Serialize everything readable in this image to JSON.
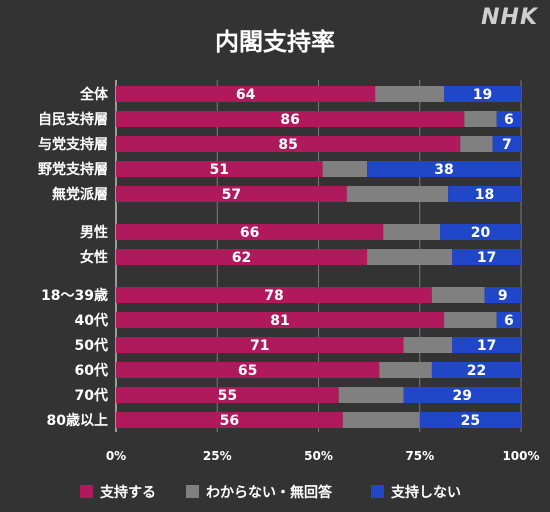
{
  "brand": "NHK",
  "chart_data": {
    "type": "bar",
    "orientation": "horizontal",
    "stacked": true,
    "title": "内閣支持率",
    "categories": [
      "全体",
      "自民支持層",
      "与党支持層",
      "野党支持層",
      "無党派層",
      "男性",
      "女性",
      "18〜39歳",
      "40代",
      "50代",
      "60代",
      "70代",
      "80歳以上"
    ],
    "groups": [
      [
        0,
        1,
        2,
        3,
        4
      ],
      [
        5,
        6
      ],
      [
        7,
        8,
        9,
        10,
        11,
        12
      ]
    ],
    "series": [
      {
        "name": "支持する",
        "color": "#b0195b",
        "values": [
          64,
          86,
          85,
          51,
          57,
          66,
          62,
          78,
          81,
          71,
          65,
          55,
          56
        ]
      },
      {
        "name": "わからない・無回答",
        "color": "#808080",
        "values": [
          17,
          8,
          8,
          11,
          25,
          14,
          21,
          13,
          13,
          12,
          13,
          16,
          19
        ]
      },
      {
        "name": "支持しない",
        "color": "#1f47c8",
        "values": [
          19,
          6,
          7,
          38,
          18,
          20,
          17,
          9,
          6,
          17,
          22,
          29,
          25
        ]
      }
    ],
    "labeled_series": [
      0,
      2
    ],
    "xlim": [
      0,
      100
    ],
    "xticks": [
      "0%",
      "25%",
      "50%",
      "75%",
      "100%"
    ],
    "legend_position": "bottom"
  }
}
